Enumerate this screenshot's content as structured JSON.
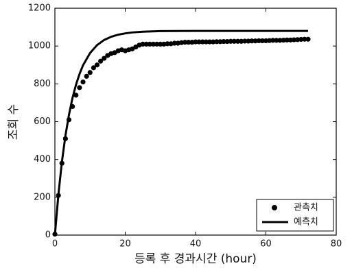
{
  "chart_data": {
    "type": "line",
    "xlabel": "등록 후 경과시간 (hour)",
    "ylabel": "조회 수",
    "xlim": [
      0,
      80
    ],
    "xticks": [
      0,
      20,
      40,
      60,
      80
    ],
    "ylim": [
      0,
      1200
    ],
    "yticks": [
      0,
      200,
      400,
      600,
      800,
      1000,
      1200
    ],
    "legend": "lower right",
    "series": [
      {
        "name": "관측치",
        "color": "#000000",
        "mode": "markers",
        "x": [
          0,
          1,
          2,
          3,
          4,
          5,
          6,
          7,
          8,
          9,
          10,
          11,
          12,
          13,
          14,
          15,
          16,
          17,
          18,
          19,
          20,
          21,
          22,
          23,
          24,
          25,
          26,
          27,
          28,
          29,
          30,
          31,
          32,
          33,
          34,
          35,
          36,
          37,
          38,
          39,
          40,
          41,
          42,
          43,
          44,
          45,
          46,
          47,
          48,
          49,
          50,
          51,
          52,
          53,
          54,
          55,
          56,
          57,
          58,
          59,
          60,
          61,
          62,
          63,
          64,
          65,
          66,
          67,
          68,
          69,
          70,
          71,
          72
        ],
        "values": [
          5,
          210,
          380,
          510,
          610,
          680,
          740,
          780,
          810,
          840,
          860,
          885,
          900,
          920,
          935,
          950,
          960,
          965,
          975,
          980,
          975,
          980,
          985,
          995,
          1005,
          1010,
          1010,
          1010,
          1010,
          1010,
          1010,
          1010,
          1012,
          1012,
          1015,
          1015,
          1018,
          1020,
          1020,
          1020,
          1022,
          1022,
          1022,
          1022,
          1022,
          1022,
          1023,
          1023,
          1024,
          1024,
          1025,
          1025,
          1025,
          1025,
          1026,
          1026,
          1027,
          1027,
          1028,
          1028,
          1028,
          1029,
          1030,
          1030,
          1030,
          1031,
          1032,
          1032,
          1033,
          1034,
          1035,
          1036,
          1036
        ]
      },
      {
        "name": "예측치",
        "color": "#000000",
        "mode": "line",
        "x": [
          0,
          1,
          2,
          3,
          4,
          5,
          6,
          7,
          8,
          10,
          12,
          14,
          16,
          18,
          20,
          22,
          25,
          30,
          40,
          50,
          60,
          72
        ],
        "values": [
          0,
          215,
          388,
          526,
          636,
          725,
          795,
          852,
          898,
          963,
          1005,
          1032,
          1049,
          1060,
          1067,
          1072,
          1076,
          1079,
          1080,
          1080,
          1080,
          1080
        ]
      }
    ]
  }
}
